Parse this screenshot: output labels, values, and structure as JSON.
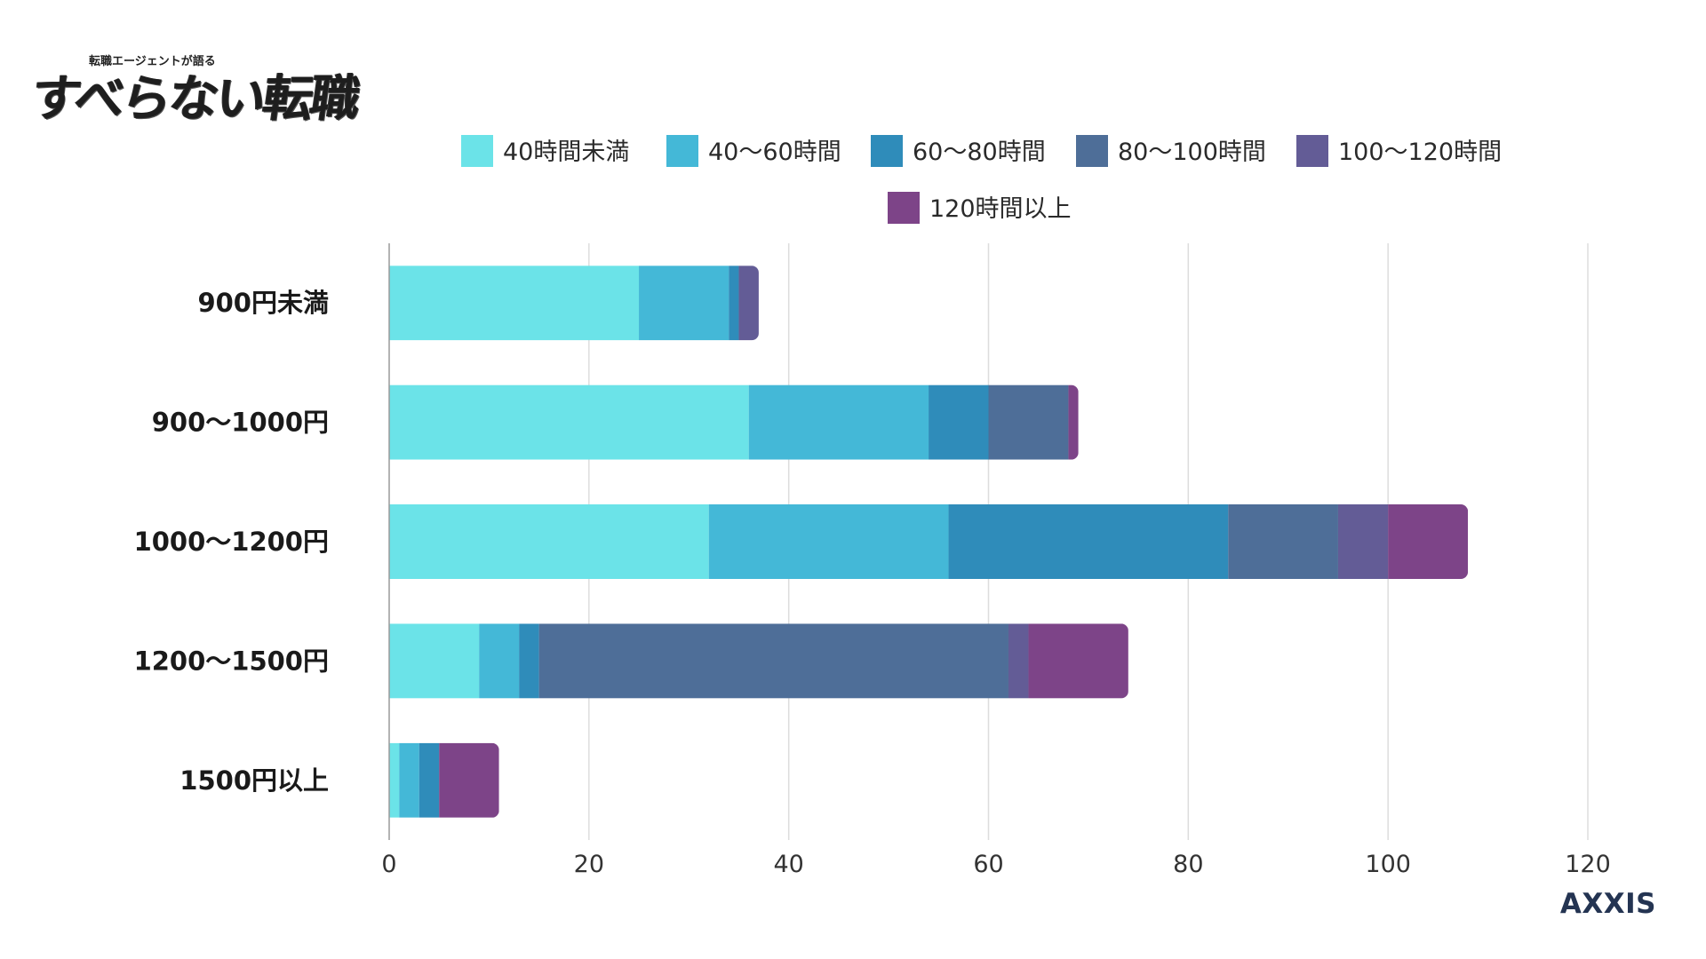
{
  "logo": {
    "subtitle": "転職エージェントが語る",
    "title": "すべらない転職"
  },
  "brand": "AXXIS",
  "chart_data": {
    "type": "bar",
    "orientation": "horizontal",
    "stacked": true,
    "categories": [
      "900円未満",
      "900〜1000円",
      "1000〜1200円",
      "1200〜1500円",
      "1500円以上"
    ],
    "series": [
      {
        "name": "40時間未満",
        "color": "#6be3e8",
        "values": [
          25,
          36,
          32,
          9,
          1
        ]
      },
      {
        "name": "40〜60時間",
        "color": "#44b8d7",
        "values": [
          9,
          18,
          24,
          4,
          2
        ]
      },
      {
        "name": "60〜80時間",
        "color": "#2f8cba",
        "values": [
          1,
          6,
          28,
          2,
          2
        ]
      },
      {
        "name": "80〜100時間",
        "color": "#4e6e98",
        "values": [
          0,
          8,
          11,
          47,
          0
        ]
      },
      {
        "name": "100〜120時間",
        "color": "#635c96",
        "values": [
          2,
          0,
          5,
          2,
          0
        ]
      },
      {
        "name": "120時間以上",
        "color": "#7d4488",
        "values": [
          0,
          1,
          8,
          10,
          6
        ]
      }
    ],
    "xlim": [
      0,
      120
    ],
    "xticks": [
      "0",
      "20",
      "40",
      "60",
      "80",
      "100",
      "120"
    ],
    "grid": true,
    "legend": "top"
  }
}
